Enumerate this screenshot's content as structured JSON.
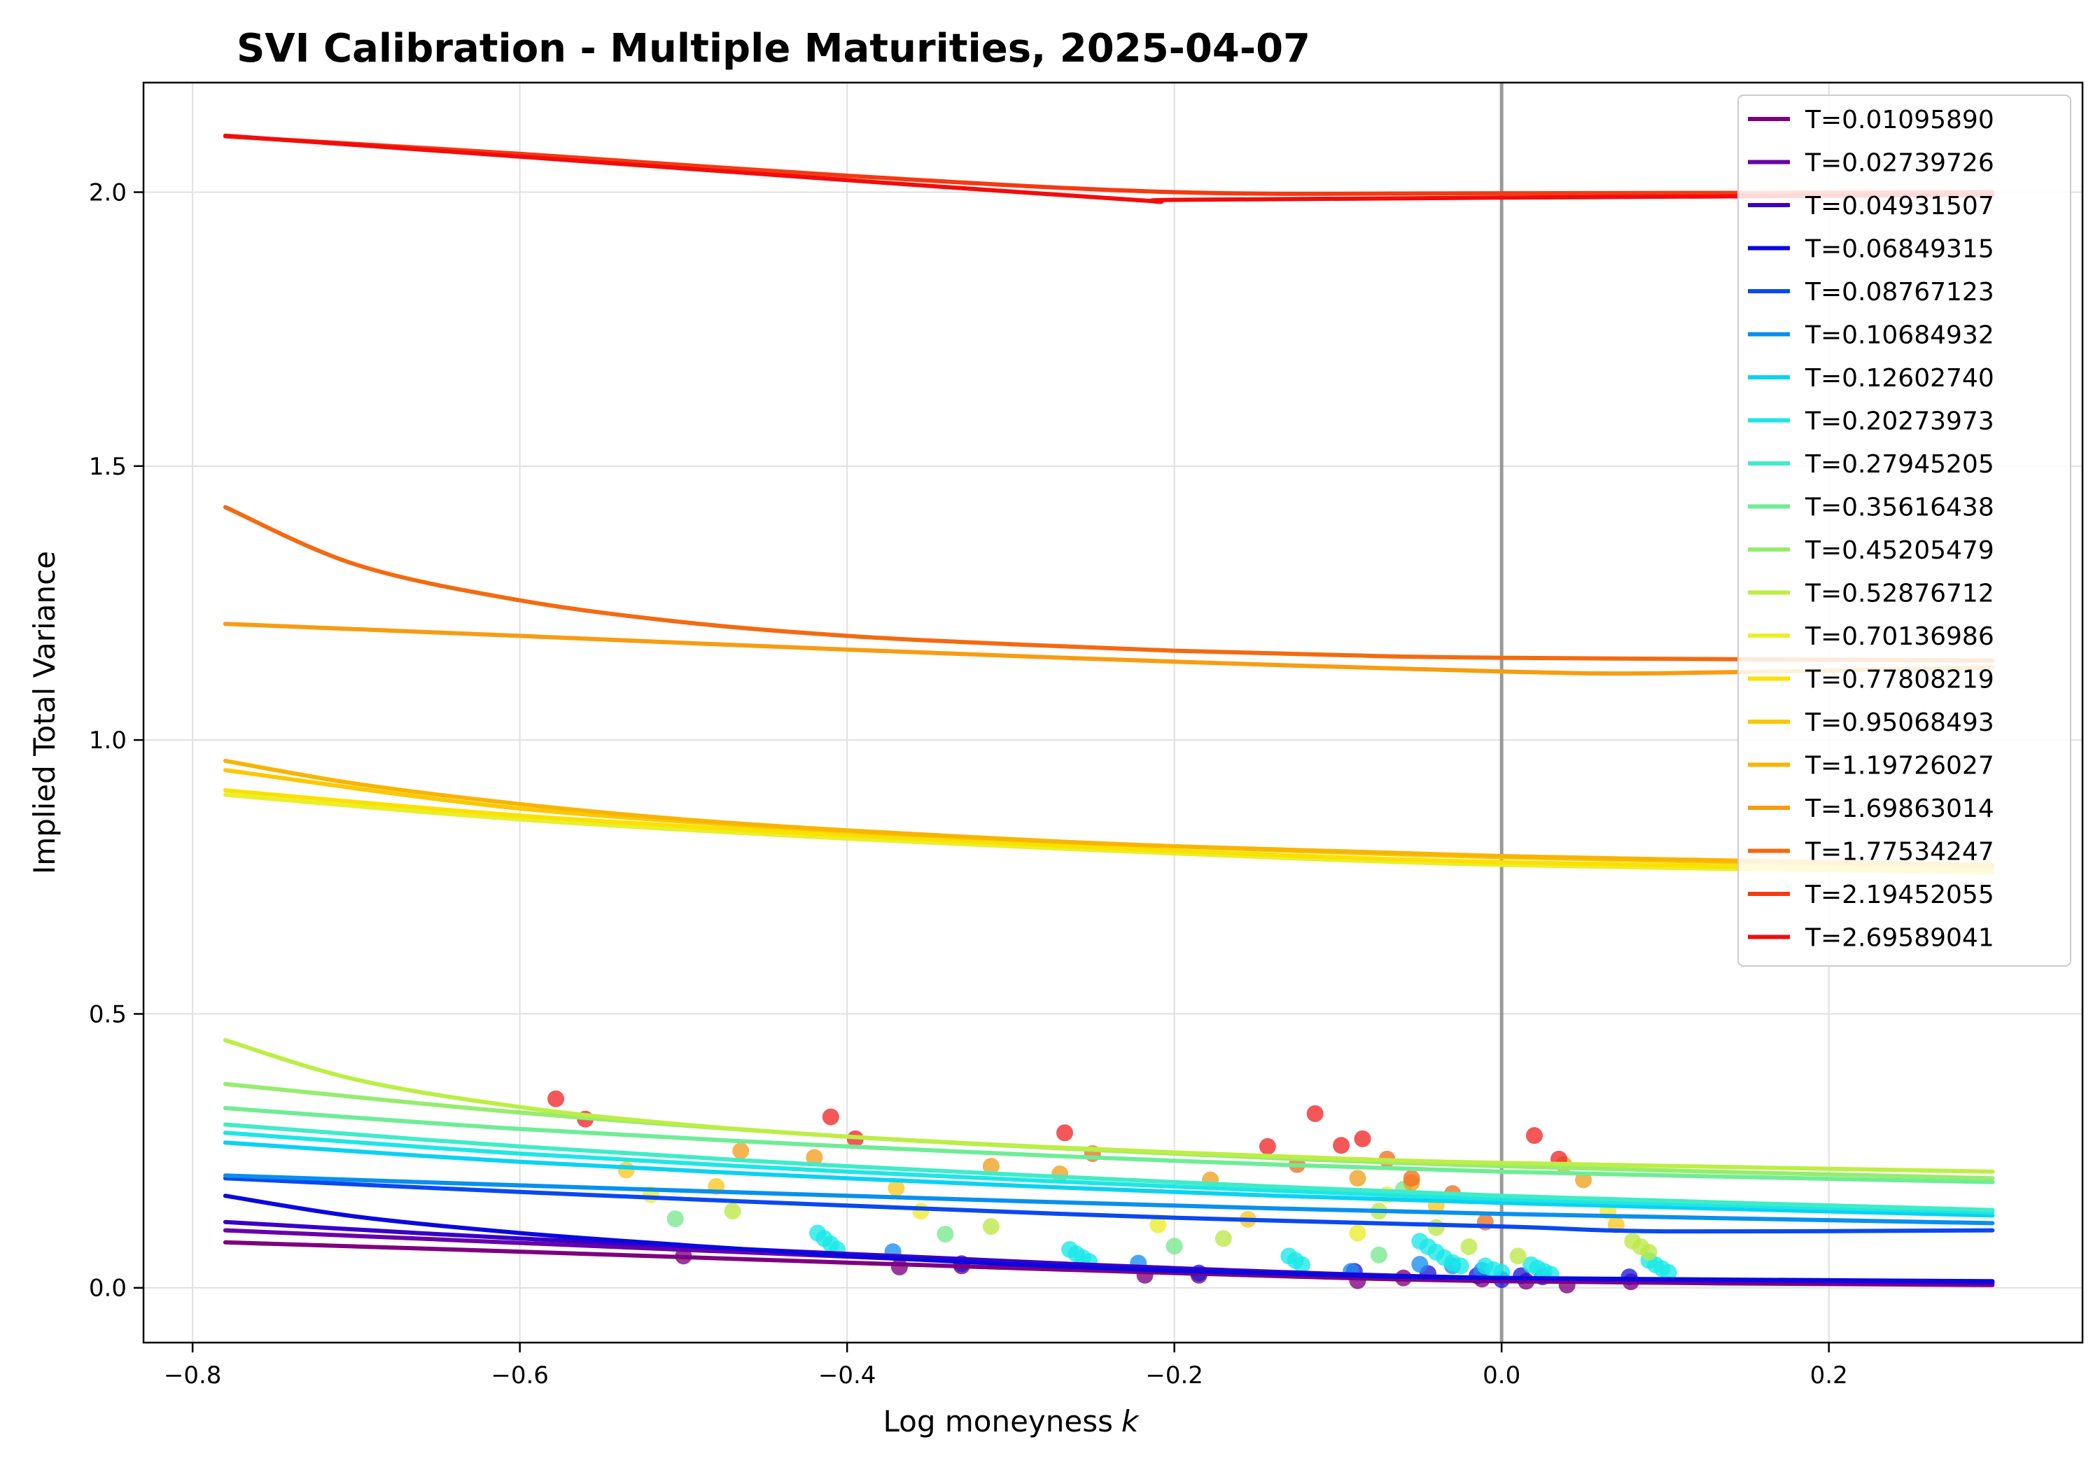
{
  "chart_data": {
    "type": "line",
    "title": "SVI Calibration - Multiple Maturities, 2025-04-07",
    "xlabel": "Log moneyness",
    "xlabel_var": "k",
    "ylabel": "Implied Total Variance",
    "xlim": [
      -0.83,
      0.355
    ],
    "ylim": [
      -0.1,
      2.2
    ],
    "xticks": [
      -0.8,
      -0.6,
      -0.4,
      -0.2,
      0.0,
      0.2
    ],
    "xtick_labels": [
      "−0.8",
      "−0.6",
      "−0.4",
      "−0.2",
      "0.0",
      "0.2"
    ],
    "yticks": [
      0.0,
      0.5,
      1.0,
      1.5,
      2.0
    ],
    "ytick_labels": [
      "0.0",
      "0.5",
      "1.0",
      "1.5",
      "2.0"
    ],
    "grid": true,
    "vline_x": 0.0,
    "legend_position": "top-right",
    "series": [
      {
        "name": "T=0.01095890",
        "color": "#7f007f",
        "x": [
          -0.78,
          -0.6,
          -0.4,
          -0.2,
          0.0,
          0.3
        ],
        "values": [
          0.083,
          0.066,
          0.046,
          0.027,
          0.012,
          0.005
        ]
      },
      {
        "name": "T=0.02739726",
        "color": "#6a00a8",
        "x": [
          -0.78,
          -0.6,
          -0.4,
          -0.2,
          0.0,
          0.3
        ],
        "values": [
          0.105,
          0.082,
          0.057,
          0.033,
          0.016,
          0.008
        ]
      },
      {
        "name": "T=0.04931507",
        "color": "#3800c8",
        "x": [
          -0.78,
          -0.6,
          -0.4,
          -0.2,
          0.0,
          0.3
        ],
        "values": [
          0.12,
          0.09,
          0.062,
          0.036,
          0.018,
          0.01
        ]
      },
      {
        "name": "T=0.06849315",
        "color": "#0a08e0",
        "x": [
          -0.78,
          -0.7,
          -0.6,
          -0.5,
          -0.4,
          -0.3,
          -0.2,
          -0.1,
          0.0,
          0.3
        ],
        "values": [
          0.168,
          0.13,
          0.1,
          0.078,
          0.058,
          0.043,
          0.031,
          0.023,
          0.018,
          0.012
        ]
      },
      {
        "name": "T=0.08767123",
        "color": "#0a48f0",
        "x": [
          -0.78,
          -0.6,
          -0.4,
          -0.2,
          0.0,
          0.1,
          0.3
        ],
        "values": [
          0.2,
          0.175,
          0.15,
          0.128,
          0.112,
          0.103,
          0.105
        ]
      },
      {
        "name": "T=0.10684932",
        "color": "#0890ee",
        "x": [
          -0.78,
          -0.6,
          -0.4,
          -0.2,
          0.0,
          0.3
        ],
        "values": [
          0.205,
          0.187,
          0.168,
          0.15,
          0.135,
          0.118
        ]
      },
      {
        "name": "T=0.12602740",
        "color": "#0ad2f2",
        "x": [
          -0.78,
          -0.6,
          -0.4,
          -0.2,
          0.0,
          0.3
        ],
        "values": [
          0.265,
          0.23,
          0.2,
          0.175,
          0.155,
          0.132
        ]
      },
      {
        "name": "T=0.20273973",
        "color": "#1ee6e6",
        "x": [
          -0.78,
          -0.6,
          -0.4,
          -0.2,
          0.0,
          0.3
        ],
        "values": [
          0.283,
          0.245,
          0.212,
          0.185,
          0.162,
          0.138
        ]
      },
      {
        "name": "T=0.27945205",
        "color": "#40ecc8",
        "x": [
          -0.78,
          -0.6,
          -0.4,
          -0.2,
          0.0,
          0.3
        ],
        "values": [
          0.298,
          0.258,
          0.222,
          0.193,
          0.168,
          0.142
        ]
      },
      {
        "name": "T=0.35616438",
        "color": "#6fec96",
        "x": [
          -0.78,
          -0.6,
          -0.4,
          -0.2,
          0.0,
          0.3
        ],
        "values": [
          0.328,
          0.29,
          0.258,
          0.232,
          0.212,
          0.193
        ]
      },
      {
        "name": "T=0.45205479",
        "color": "#96ec6f",
        "x": [
          -0.78,
          -0.6,
          -0.4,
          -0.2,
          0.0,
          0.3
        ],
        "values": [
          0.372,
          0.32,
          0.276,
          0.245,
          0.222,
          0.2
        ]
      },
      {
        "name": "T=0.52876712",
        "color": "#bcee44",
        "x": [
          -0.78,
          -0.7,
          -0.6,
          -0.5,
          -0.4,
          -0.3,
          -0.2,
          -0.1,
          0.0,
          0.3
        ],
        "values": [
          0.452,
          0.38,
          0.33,
          0.298,
          0.276,
          0.26,
          0.247,
          0.236,
          0.228,
          0.212
        ]
      },
      {
        "name": "T=0.70136986",
        "color": "#e8f02a",
        "x": [
          -0.78,
          -0.6,
          -0.4,
          -0.2,
          0.0,
          0.3
        ],
        "values": [
          0.9,
          0.855,
          0.82,
          0.793,
          0.772,
          0.758
        ]
      },
      {
        "name": "T=0.77808219",
        "color": "#fce000",
        "x": [
          -0.78,
          -0.6,
          -0.4,
          -0.2,
          0.0,
          0.3
        ],
        "values": [
          0.908,
          0.862,
          0.826,
          0.798,
          0.777,
          0.762
        ]
      },
      {
        "name": "T=0.95068493",
        "color": "#fcc800",
        "x": [
          -0.78,
          -0.6,
          -0.4,
          -0.2,
          0.0,
          0.3
        ],
        "values": [
          0.945,
          0.875,
          0.833,
          0.806,
          0.786,
          0.768
        ]
      },
      {
        "name": "T=1.19726027",
        "color": "#f8b400",
        "x": [
          -0.78,
          -0.7,
          -0.6,
          -0.5,
          -0.4,
          -0.3,
          -0.2,
          0.0,
          0.3
        ],
        "values": [
          0.962,
          0.92,
          0.883,
          0.855,
          0.835,
          0.819,
          0.806,
          0.788,
          0.772
        ]
      },
      {
        "name": "T=1.69863014",
        "color": "#f89c10",
        "x": [
          -0.78,
          -0.6,
          -0.4,
          -0.2,
          0.0,
          0.1,
          0.3
        ],
        "values": [
          1.212,
          1.19,
          1.165,
          1.143,
          1.125,
          1.122,
          1.132
        ]
      },
      {
        "name": "T=1.77534247",
        "color": "#f46a10",
        "x": [
          -0.78,
          -0.7,
          -0.6,
          -0.5,
          -0.4,
          -0.3,
          -0.2,
          -0.1,
          0.0,
          0.3
        ],
        "values": [
          1.425,
          1.32,
          1.255,
          1.215,
          1.19,
          1.175,
          1.163,
          1.155,
          1.15,
          1.145
        ]
      },
      {
        "name": "T=2.19452055",
        "color": "#f43a12",
        "x": [
          -0.78,
          -0.6,
          -0.4,
          -0.2,
          0.0,
          0.3
        ],
        "values": [
          2.102,
          2.07,
          2.03,
          2.0,
          1.998,
          2.0
        ]
      },
      {
        "name": "T=2.69589041",
        "color": "#f20c0c",
        "x": [
          -0.78,
          -0.6,
          -0.4,
          -0.22,
          -0.2,
          0.0,
          0.3
        ],
        "values": [
          2.103,
          2.065,
          2.022,
          1.985,
          1.986,
          1.99,
          1.995
        ]
      }
    ],
    "market_points": [
      {
        "color": "#7f007f",
        "x": [
          -0.5,
          -0.368,
          -0.33,
          -0.218,
          -0.185,
          -0.088,
          -0.06,
          -0.012,
          0.015,
          0.04,
          0.079
        ],
        "y": [
          0.058,
          0.038,
          0.04,
          0.023,
          0.023,
          0.013,
          0.018,
          0.016,
          0.012,
          0.005,
          0.011
        ]
      },
      {
        "color": "#2018d8",
        "x": [
          -0.33,
          -0.185,
          -0.09,
          -0.045,
          -0.015,
          0.0,
          0.012,
          0.025,
          0.078
        ],
        "y": [
          0.044,
          0.027,
          0.03,
          0.026,
          0.022,
          0.015,
          0.022,
          0.02,
          0.02
        ]
      },
      {
        "color": "#1a8ef0",
        "x": [
          -0.372,
          -0.222,
          -0.092,
          -0.05,
          -0.03,
          -0.012
        ],
        "y": [
          0.066,
          0.045,
          0.03,
          0.043,
          0.04,
          0.032
        ]
      },
      {
        "color": "#18e8e8",
        "x": [
          -0.418,
          -0.414,
          -0.41,
          -0.406,
          -0.264,
          -0.26,
          -0.256,
          -0.252,
          -0.13,
          -0.126,
          -0.122,
          -0.05,
          -0.045,
          -0.04,
          -0.035,
          -0.03,
          -0.025,
          -0.01,
          -0.005,
          0.0,
          0.018,
          0.022,
          0.026,
          0.03,
          0.09,
          0.094,
          0.098,
          0.102
        ],
        "y": [
          0.1,
          0.09,
          0.08,
          0.07,
          0.07,
          0.062,
          0.055,
          0.048,
          0.058,
          0.05,
          0.042,
          0.085,
          0.075,
          0.065,
          0.055,
          0.046,
          0.04,
          0.04,
          0.033,
          0.028,
          0.042,
          0.036,
          0.03,
          0.025,
          0.05,
          0.042,
          0.035,
          0.028
        ]
      },
      {
        "color": "#78e890",
        "x": [
          -0.505,
          -0.34,
          -0.2,
          -0.075,
          -0.06
        ],
        "y": [
          0.126,
          0.098,
          0.076,
          0.06,
          0.18
        ]
      },
      {
        "color": "#bce846",
        "x": [
          -0.47,
          -0.312,
          -0.17,
          -0.075,
          -0.04,
          -0.02,
          0.01,
          0.08,
          0.085,
          0.09
        ],
        "y": [
          0.14,
          0.112,
          0.09,
          0.14,
          0.11,
          0.075,
          0.058,
          0.085,
          0.075,
          0.065
        ]
      },
      {
        "color": "#ecec2a",
        "x": [
          -0.52,
          -0.355,
          -0.21,
          -0.088,
          -0.07,
          0.065
        ],
        "y": [
          0.17,
          0.14,
          0.115,
          0.1,
          0.17,
          0.14
        ]
      },
      {
        "color": "#f8c820",
        "x": [
          -0.535,
          -0.48,
          -0.37,
          -0.155,
          -0.04,
          0.07
        ],
        "y": [
          0.215,
          0.185,
          0.182,
          0.125,
          0.15,
          0.115
        ]
      },
      {
        "color": "#f0a020",
        "x": [
          -0.465,
          -0.42,
          -0.312,
          -0.27,
          -0.178,
          -0.088,
          -0.055,
          0.038,
          0.05
        ],
        "y": [
          0.25,
          0.238,
          0.222,
          0.208,
          0.197,
          0.2,
          0.192,
          0.225,
          0.197
        ]
      },
      {
        "color": "#f07020",
        "x": [
          -0.25,
          -0.125,
          -0.07,
          -0.055,
          -0.03,
          -0.01
        ],
        "y": [
          0.245,
          0.225,
          0.235,
          0.2,
          0.172,
          0.12
        ]
      },
      {
        "color": "#f02828",
        "x": [
          -0.578,
          -0.56,
          -0.41,
          -0.395,
          -0.267,
          -0.143,
          -0.114,
          -0.098,
          -0.085,
          0.02,
          0.035
        ],
        "y": [
          0.345,
          0.308,
          0.312,
          0.272,
          0.283,
          0.258,
          0.318,
          0.26,
          0.272,
          0.278,
          0.235
        ]
      }
    ]
  }
}
